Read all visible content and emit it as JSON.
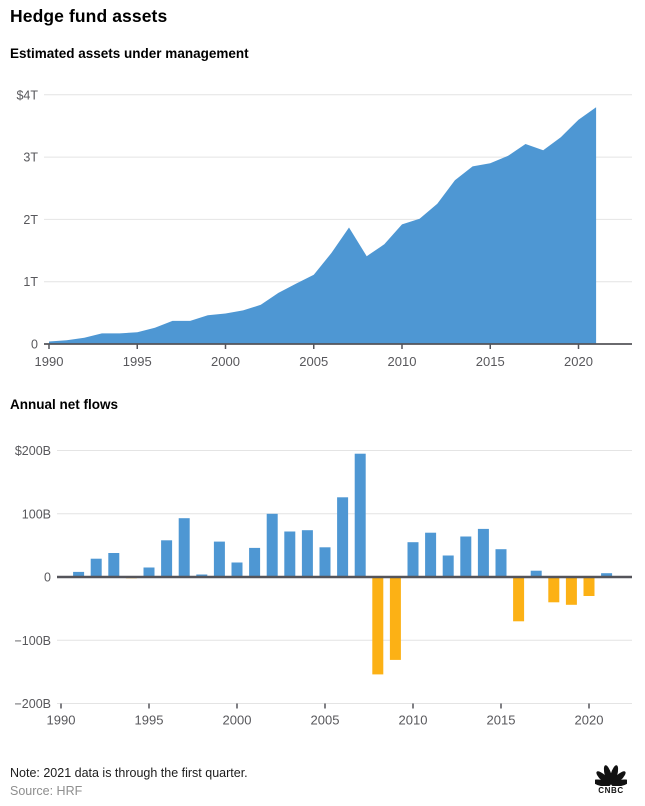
{
  "page": {
    "title": "Hedge fund assets",
    "note": "Note: 2021 data is through the first quarter.",
    "source": "Source: HRF",
    "logo": "CNBC"
  },
  "colors": {
    "blue": "#4E97D3",
    "orange": "#FCB115",
    "grid": "#E4E4E4",
    "axis_line": "#54545A",
    "tick_label": "#58585C"
  },
  "chart_data": [
    {
      "type": "area",
      "title": "Estimated assets under management",
      "unit": "trillions USD",
      "x": [
        1990,
        1991,
        1992,
        1993,
        1994,
        1995,
        1996,
        1997,
        1998,
        1999,
        2000,
        2001,
        2002,
        2003,
        2004,
        2005,
        2006,
        2007,
        2008,
        2009,
        2010,
        2011,
        2012,
        2013,
        2014,
        2015,
        2016,
        2017,
        2018,
        2019,
        2020,
        2021
      ],
      "values": [
        0.04,
        0.06,
        0.1,
        0.17,
        0.17,
        0.19,
        0.26,
        0.37,
        0.37,
        0.46,
        0.49,
        0.54,
        0.63,
        0.82,
        0.97,
        1.11,
        1.46,
        1.87,
        1.41,
        1.6,
        1.92,
        2.01,
        2.25,
        2.63,
        2.85,
        2.9,
        3.02,
        3.21,
        3.11,
        3.32,
        3.6,
        3.8
      ],
      "ylim": [
        0,
        4
      ],
      "xlim": [
        1990,
        2022
      ],
      "grid": true,
      "legend": "none",
      "yticks": [
        {
          "value": 4,
          "label": "$4T"
        },
        {
          "value": 3,
          "label": "3T"
        },
        {
          "value": 2,
          "label": "2T"
        },
        {
          "value": 1,
          "label": "1T"
        },
        {
          "value": 0,
          "label": "0"
        }
      ],
      "xticks": [
        1990,
        1995,
        2000,
        2005,
        2010,
        2015,
        2020
      ]
    },
    {
      "type": "bar",
      "title": "Annual net flows",
      "unit": "billions USD",
      "x": [
        1991,
        1992,
        1993,
        1994,
        1995,
        1996,
        1997,
        1998,
        1999,
        2000,
        2001,
        2002,
        2003,
        2004,
        2005,
        2006,
        2007,
        2008,
        2009,
        2010,
        2011,
        2012,
        2013,
        2014,
        2015,
        2016,
        2017,
        2018,
        2019,
        2020,
        2021
      ],
      "values": [
        8,
        29,
        38,
        -2,
        15,
        58,
        93,
        4,
        56,
        23,
        46,
        100,
        72,
        74,
        47,
        126,
        195,
        -154,
        -131,
        55,
        70,
        34,
        64,
        76,
        44,
        -70,
        10,
        -40,
        -44,
        -30,
        6
      ],
      "ylim": [
        -200,
        200
      ],
      "xlim": [
        1990,
        2022
      ],
      "grid": true,
      "legend": "none",
      "positive_color": "#4E97D3",
      "negative_color": "#FCB115",
      "yticks": [
        {
          "value": 200,
          "label": "$200B"
        },
        {
          "value": 100,
          "label": "100B"
        },
        {
          "value": 0,
          "label": "0"
        },
        {
          "value": -100,
          "label": "−100B"
        },
        {
          "value": -200,
          "label": "−200B"
        }
      ],
      "xticks": [
        1990,
        1995,
        2000,
        2005,
        2010,
        2015,
        2020
      ]
    }
  ]
}
